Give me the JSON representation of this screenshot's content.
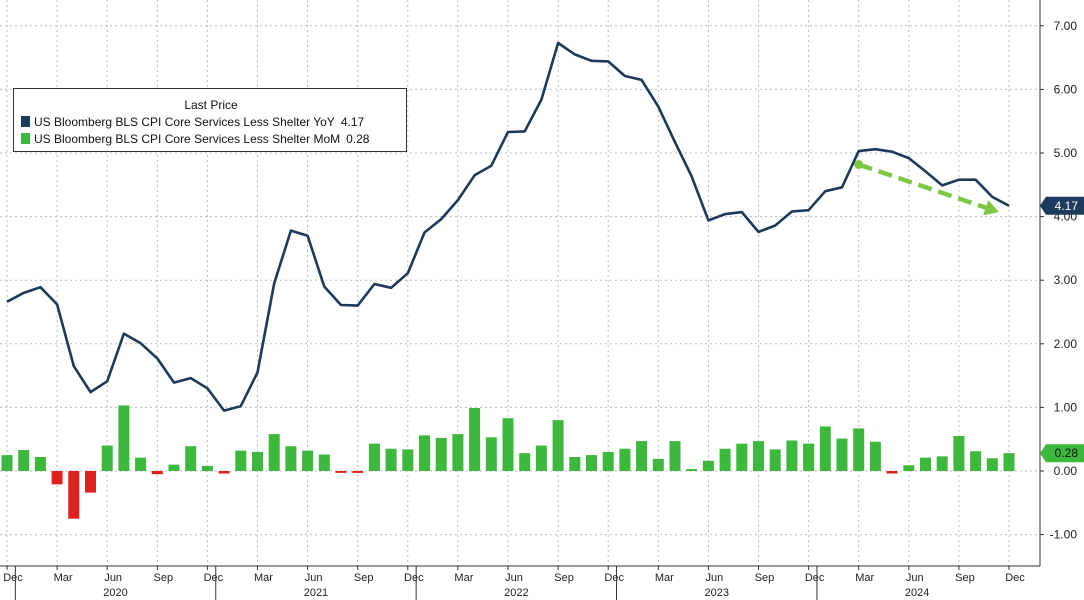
{
  "chart_data": {
    "type": "bar+line",
    "legend": {
      "title": "Last Price",
      "placement": "top-left",
      "entries": [
        {
          "name": "US Bloomberg BLS CPI Core Services Less Shelter YoY",
          "value": "4.17",
          "color": "#1c3a5c"
        },
        {
          "name": "US Bloomberg BLS CPI Core Services Less Shelter MoM",
          "value": "0.28",
          "color": "#3cb83c"
        }
      ]
    },
    "y_ticks": [
      "7.00",
      "6.00",
      "5.00",
      "4.00",
      "3.00",
      "2.00",
      "1.00",
      "0.00",
      "-1.00"
    ],
    "ylim": [
      -1.3,
      7.3
    ],
    "grid": true,
    "x_ticks": [
      "Dec",
      "Mar",
      "Jun",
      "Sep",
      "Dec",
      "Mar",
      "Jun",
      "Sep",
      "Dec",
      "Mar",
      "Jun",
      "Sep",
      "Dec",
      "Mar",
      "Jun",
      "Sep",
      "Dec",
      "Mar",
      "Jun",
      "Sep",
      "Dec"
    ],
    "year_labels": [
      "2020",
      "2021",
      "2022",
      "2023",
      "2024"
    ],
    "x": [
      "2019-12",
      "2020-01",
      "2020-02",
      "2020-03",
      "2020-04",
      "2020-05",
      "2020-06",
      "2020-07",
      "2020-08",
      "2020-09",
      "2020-10",
      "2020-11",
      "2020-12",
      "2021-01",
      "2021-02",
      "2021-03",
      "2021-04",
      "2021-05",
      "2021-06",
      "2021-07",
      "2021-08",
      "2021-09",
      "2021-10",
      "2021-11",
      "2021-12",
      "2022-01",
      "2022-02",
      "2022-03",
      "2022-04",
      "2022-05",
      "2022-06",
      "2022-07",
      "2022-08",
      "2022-09",
      "2022-10",
      "2022-11",
      "2022-12",
      "2023-01",
      "2023-02",
      "2023-03",
      "2023-04",
      "2023-05",
      "2023-06",
      "2023-07",
      "2023-08",
      "2023-09",
      "2023-10",
      "2023-11",
      "2023-12",
      "2024-01",
      "2024-02",
      "2024-03",
      "2024-04",
      "2024-05",
      "2024-06",
      "2024-07",
      "2024-08",
      "2024-09",
      "2024-10",
      "2024-11",
      "2024-12"
    ],
    "series": [
      {
        "name": "US Bloomberg BLS CPI Core Services Less Shelter YoY",
        "kind": "line",
        "color": "#1c3a5c",
        "values": [
          2.66,
          2.8,
          2.89,
          2.62,
          1.65,
          1.24,
          1.41,
          2.16,
          2.01,
          1.77,
          1.39,
          1.46,
          1.3,
          0.95,
          1.02,
          1.55,
          2.95,
          3.78,
          3.7,
          2.9,
          2.61,
          2.6,
          2.94,
          2.88,
          3.11,
          3.75,
          3.96,
          4.26,
          4.65,
          4.8,
          5.33,
          5.34,
          5.84,
          6.73,
          6.55,
          6.45,
          6.44,
          6.21,
          6.15,
          5.73,
          5.17,
          4.63,
          3.94,
          4.04,
          4.07,
          3.76,
          3.86,
          4.08,
          4.1,
          4.4,
          4.46,
          5.03,
          5.06,
          5.02,
          4.92,
          4.71,
          4.49,
          4.58,
          4.58,
          4.31,
          4.17
        ]
      },
      {
        "name": "US Bloomberg BLS CPI Core Services Less Shelter MoM",
        "kind": "bar",
        "values": [
          0.25,
          0.33,
          0.22,
          -0.21,
          -0.75,
          -0.34,
          0.4,
          1.03,
          0.21,
          -0.05,
          0.1,
          0.39,
          0.08,
          -0.04,
          0.32,
          0.3,
          0.58,
          0.39,
          0.32,
          0.26,
          -0.03,
          -0.03,
          0.43,
          0.35,
          0.34,
          0.56,
          0.52,
          0.58,
          0.99,
          0.53,
          0.83,
          0.28,
          0.4,
          0.8,
          0.22,
          0.25,
          0.3,
          0.35,
          0.47,
          0.19,
          0.47,
          0.03,
          0.16,
          0.35,
          0.43,
          0.47,
          0.34,
          0.48,
          0.43,
          0.7,
          0.51,
          0.67,
          0.46,
          -0.04,
          0.09,
          0.21,
          0.23,
          0.55,
          0.31,
          0.2,
          0.28
        ]
      }
    ],
    "colors": {
      "line": "#1c3a5c",
      "bar_positive": "#3cb83c",
      "bar_negative": "#e0201c",
      "arrow": "#7cc842",
      "grid": "#bcbcbc"
    },
    "annotations": [
      {
        "type": "last-value-badge",
        "series": "YoY",
        "text": "4.17",
        "color": "#1c3a5c"
      },
      {
        "type": "last-value-badge",
        "series": "MoM",
        "text": "0.28",
        "color": "#3cb83c"
      },
      {
        "type": "trend-arrow",
        "from": [
          "2024-03",
          4.82
        ],
        "to": [
          "2024-12",
          4.07
        ],
        "color": "#7cc842",
        "style": "dashed"
      }
    ]
  }
}
